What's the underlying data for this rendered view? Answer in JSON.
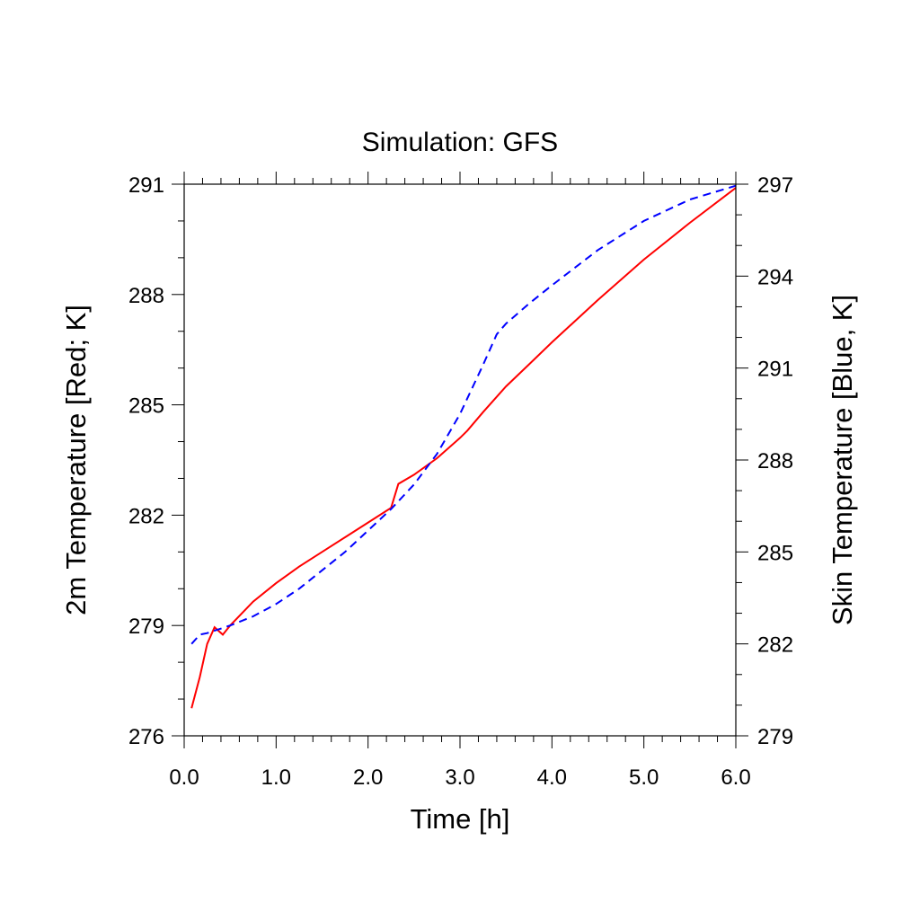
{
  "chart_data": {
    "type": "line",
    "title": "Simulation: GFS",
    "xlabel": "Time [h]",
    "ylabel_left": "2m Temperature [Red; K]",
    "ylabel_right": "Skin Temperature [Blue, K]",
    "xlim": [
      0.0,
      6.0
    ],
    "ylim_left": [
      276,
      291
    ],
    "ylim_right": [
      279,
      297
    ],
    "x_ticks": [
      "0.0",
      "1.0",
      "2.0",
      "3.0",
      "4.0",
      "5.0",
      "6.0"
    ],
    "y_ticks_left": [
      "276",
      "279",
      "282",
      "285",
      "288",
      "291"
    ],
    "y_ticks_right": [
      "279",
      "282",
      "285",
      "288",
      "291",
      "294",
      "297"
    ],
    "grid": false,
    "series": [
      {
        "axis": "left",
        "color": "#ff0000",
        "style": "solid",
        "x": [
          0.08,
          0.17,
          0.25,
          0.33,
          0.42,
          0.5,
          0.75,
          1.0,
          1.25,
          1.5,
          1.75,
          2.0,
          2.25,
          2.33,
          2.5,
          2.75,
          3.0,
          3.08,
          3.25,
          3.5,
          3.75,
          4.0,
          4.5,
          5.0,
          5.5,
          6.0
        ],
        "y": [
          276.75,
          277.6,
          278.5,
          278.95,
          278.75,
          279.0,
          279.65,
          280.15,
          280.6,
          281.0,
          281.4,
          281.8,
          282.2,
          282.85,
          283.1,
          283.55,
          284.1,
          284.3,
          284.8,
          285.5,
          286.1,
          286.7,
          287.85,
          288.95,
          289.95,
          290.9
        ]
      },
      {
        "axis": "right",
        "color": "#0000ff",
        "style": "dashed",
        "x": [
          0.08,
          0.17,
          0.25,
          0.5,
          0.75,
          1.0,
          1.25,
          1.5,
          1.75,
          2.0,
          2.25,
          2.5,
          2.75,
          3.0,
          3.25,
          3.4,
          3.5,
          3.75,
          4.0,
          4.5,
          5.0,
          5.5,
          6.0
        ],
        "y": [
          282.0,
          282.3,
          282.35,
          282.6,
          282.9,
          283.3,
          283.8,
          284.4,
          285.0,
          285.7,
          286.4,
          287.2,
          288.2,
          289.5,
          291.1,
          292.1,
          292.45,
          293.1,
          293.7,
          294.85,
          295.8,
          296.5,
          296.95
        ]
      }
    ]
  }
}
